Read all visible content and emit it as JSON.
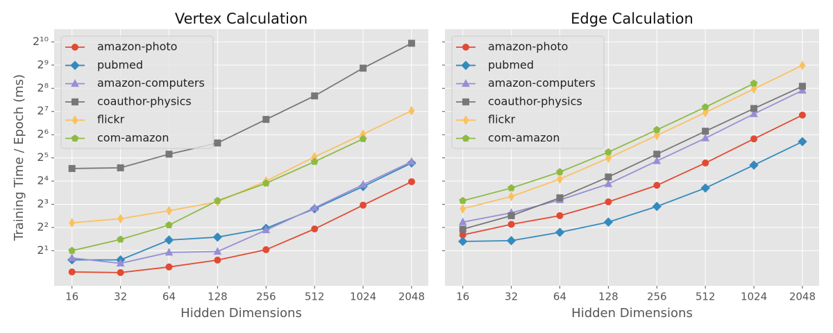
{
  "chart_data": [
    {
      "type": "line",
      "title": "Vertex Calculation",
      "xlabel": "Hidden Dimensions",
      "ylabel": "Training Time / Epoch (ms)",
      "xscale": "log2",
      "yscale": "log2",
      "grid": true,
      "legend": "upper left",
      "x": [
        16,
        32,
        64,
        128,
        256,
        512,
        1024,
        2048
      ],
      "xlim": [
        12.4,
        2600
      ],
      "ylim": [
        0.7,
        1500
      ],
      "xticks": [
        16,
        32,
        64,
        128,
        256,
        512,
        1024,
        2048
      ],
      "yticks": [
        {
          "value": 2,
          "label": "2¹"
        },
        {
          "value": 4,
          "label": "2²"
        },
        {
          "value": 8,
          "label": "2³"
        },
        {
          "value": 16,
          "label": "2⁴"
        },
        {
          "value": 32,
          "label": "2⁵"
        },
        {
          "value": 64,
          "label": "2⁶"
        },
        {
          "value": 128,
          "label": "2⁷"
        },
        {
          "value": 256,
          "label": "2⁸"
        },
        {
          "value": 512,
          "label": "2⁹"
        },
        {
          "value": 1024,
          "label": "2¹⁰"
        }
      ],
      "series": [
        {
          "name": "amazon-photo",
          "color": "#E24A33",
          "marker": "circle",
          "values": [
            1.06,
            1.04,
            1.23,
            1.51,
            2.06,
            3.83,
            7.8,
            15.7
          ]
        },
        {
          "name": "pubmed",
          "color": "#348ABD",
          "marker": "diamond",
          "values": [
            1.52,
            1.52,
            2.75,
            3.0,
            3.9,
            7.0,
            13.6,
            27.5
          ]
        },
        {
          "name": "amazon-computers",
          "color": "#988ED5",
          "marker": "triangle",
          "values": [
            1.61,
            1.37,
            1.9,
            1.95,
            3.7,
            7.2,
            14.4,
            28.6
          ]
        },
        {
          "name": "coauthor-physics",
          "color": "#777777",
          "marker": "square",
          "values": [
            23.3,
            23.8,
            35.8,
            49.9,
            101,
            204,
            468,
            982
          ]
        },
        {
          "name": "flickr",
          "color": "#FBC15E",
          "marker": "thin-diamond",
          "values": [
            4.6,
            5.2,
            6.6,
            8.6,
            16,
            33,
            65,
            131
          ]
        },
        {
          "name": "com-amazon",
          "color": "#8EBA42",
          "marker": "pentagon",
          "values": [
            2.0,
            2.8,
            4.3,
            8.9,
            15,
            28.6,
            56.5,
            null
          ]
        }
      ]
    },
    {
      "type": "line",
      "title": "Edge Calculation",
      "xlabel": "Hidden Dimensions",
      "xscale": "log2",
      "yscale": "log2",
      "grid": true,
      "legend": "upper left",
      "x": [
        16,
        32,
        64,
        128,
        256,
        512,
        1024,
        2048
      ],
      "xlim": [
        12.4,
        2600
      ],
      "ylim": [
        0.7,
        1500
      ],
      "xticks": [
        16,
        32,
        64,
        128,
        256,
        512,
        1024,
        2048
      ],
      "yticks": [
        2,
        4,
        8,
        16,
        32,
        64,
        128,
        256,
        512,
        1024
      ],
      "series": [
        {
          "name": "amazon-photo",
          "color": "#E24A33",
          "marker": "circle",
          "values": [
            3.2,
            4.4,
            5.7,
            8.6,
            14.1,
            27.5,
            56.5,
            115
          ]
        },
        {
          "name": "pubmed",
          "color": "#348ABD",
          "marker": "diamond",
          "values": [
            2.64,
            2.7,
            3.46,
            4.7,
            7.5,
            13,
            25.8,
            52
          ]
        },
        {
          "name": "amazon-computers",
          "color": "#988ED5",
          "marker": "triangle",
          "values": [
            4.7,
            6.2,
            9.1,
            14.7,
            29.2,
            57.7,
            119,
            240
          ]
        },
        {
          "name": "coauthor-physics",
          "color": "#777777",
          "marker": "square",
          "values": [
            3.8,
            5.7,
            9.7,
            18.1,
            35.8,
            71,
            140,
            272
          ]
        },
        {
          "name": "flickr",
          "color": "#FBC15E",
          "marker": "thin-diamond",
          "values": [
            7.0,
            10.1,
            17,
            31.8,
            62.7,
            124,
            251,
            508
          ]
        },
        {
          "name": "com-amazon",
          "color": "#8EBA42",
          "marker": "pentagon",
          "values": [
            8.9,
            13,
            21,
            38,
            74,
            146,
            296,
            null
          ]
        }
      ]
    }
  ]
}
